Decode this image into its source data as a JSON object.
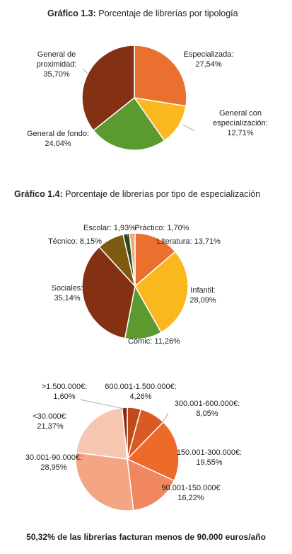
{
  "chart_data": [
    {
      "type": "pie",
      "title_prefix": "Gráfico 1.3:",
      "title": "Porcentaje de librerías por tipología",
      "slices": [
        {
          "name": "Especializada",
          "value": 27.54,
          "label": "27,54%",
          "color": "#e9702e"
        },
        {
          "name": "General con especialización",
          "value": 12.71,
          "label": "12,71%",
          "color": "#fbb81e"
        },
        {
          "name": "General de fondo",
          "value": 24.04,
          "label": "24,04%",
          "color": "#5a9a2e"
        },
        {
          "name": "General de proximidad",
          "value": 35.7,
          "label": "35,70%",
          "color": "#843012"
        }
      ]
    },
    {
      "type": "pie",
      "title_prefix": "Gráfico 1.4:",
      "title": "Porcentaje de librerías por tipo de especialización",
      "slices": [
        {
          "name": "Literatura",
          "value": 13.71,
          "label": "13,71%",
          "color": "#e9702e"
        },
        {
          "name": "Infantil",
          "value": 28.09,
          "label": "28,09%",
          "color": "#fbb81e"
        },
        {
          "name": "Cómic",
          "value": 11.26,
          "label": "11,26%",
          "color": "#5a9a2e"
        },
        {
          "name": "Sociales",
          "value": 35.14,
          "label": "35,14%",
          "color": "#843012"
        },
        {
          "name": "Técnico",
          "value": 8.15,
          "label": "8,15%",
          "color": "#7c5a10"
        },
        {
          "name": "Escolar",
          "value": 1.93,
          "label": "1,93%",
          "color": "#2f4a1a"
        },
        {
          "name": "Práctico",
          "value": 1.7,
          "label": "1,70%",
          "color": "#f0a877"
        }
      ]
    },
    {
      "type": "pie",
      "title_prefix": "",
      "title": "",
      "slices": [
        {
          "name": "600.001-1.500.000€",
          "value": 4.26,
          "label": "4,26%",
          "color": "#bf4a1b"
        },
        {
          "name": "300.001-600.000€",
          "value": 8.05,
          "label": "8,05%",
          "color": "#d95a24"
        },
        {
          "name": "150.001-300.000€",
          "value": 19.55,
          "label": "19,55%",
          "color": "#ec6a2a"
        },
        {
          "name": "90.001-150.000€",
          "value": 16.22,
          "label": "16,22%",
          "color": "#f08760"
        },
        {
          "name": "30.001-90.000€",
          "value": 28.95,
          "label": "28,95%",
          "color": "#f3a584"
        },
        {
          "name": "<30.000€",
          "value": 21.37,
          "label": "21,37%",
          "color": "#f7c6b1"
        },
        {
          "name": ">1.500.000€",
          "value": 1.6,
          "label": "1,60%",
          "color": "#8a2a0c"
        }
      ]
    }
  ],
  "footer": "50,32% de las librerías facturan menos de 90.000 euros/año"
}
